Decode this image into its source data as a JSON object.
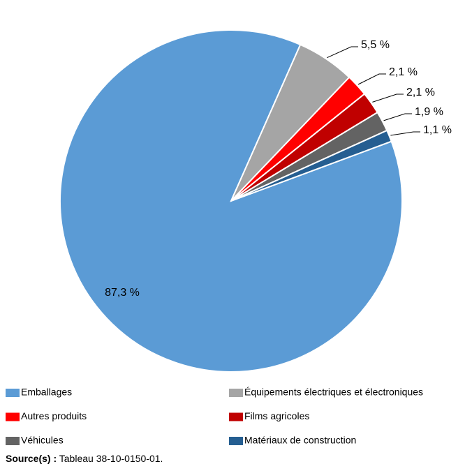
{
  "chart_data": {
    "type": "pie",
    "categories": [
      "Emballages",
      "Équipements électriques et électroniques",
      "Autres produits",
      "Films agricoles",
      "Véhicules",
      "Matériaux de construction"
    ],
    "values": [
      87.3,
      5.5,
      2.1,
      2.1,
      1.9,
      1.1
    ],
    "value_labels": [
      "87,3 %",
      "5,5 %",
      "2,1 %",
      "2,1 %",
      "1,9 %",
      "1,1 %"
    ],
    "colors": [
      "#5b9bd5",
      "#a5a5a5",
      "#ff0000",
      "#c00000",
      "#636363",
      "#255e91"
    ],
    "legend": "bottom",
    "source_label": "Source(s) :",
    "source_text": "Tableau 38-10-0150-01."
  }
}
